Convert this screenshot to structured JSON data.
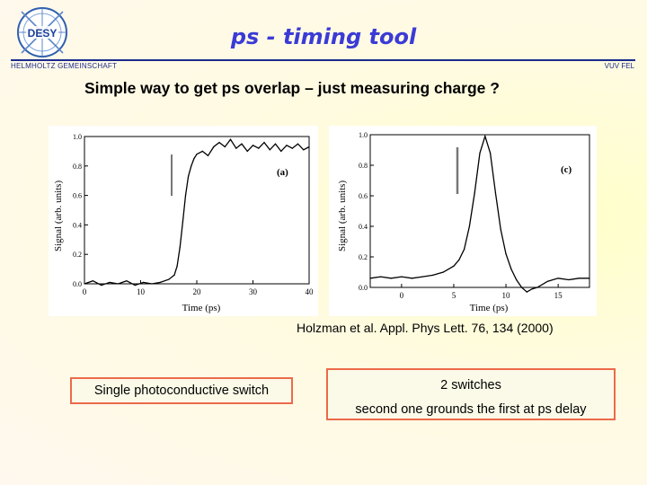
{
  "header": {
    "logo_text": "DESY",
    "title": "ps - timing tool",
    "organization": "HELMHOLTZ GEMEINSCHAFT",
    "group": "VUV FEL",
    "subtitle": "Simple way to get ps overlap – just measuring charge ?"
  },
  "reference": "Holzman et al. Appl. Phys Lett. 76, 134 (2000)",
  "boxes": {
    "single": "Single photoconductive switch",
    "double_title": "2 switches",
    "double_desc": "second one grounds the first at ps delay"
  },
  "chart_data": [
    {
      "type": "line",
      "panel_label": "(a)",
      "xlabel": "Time (ps)",
      "ylabel": "Signal (arb. units)",
      "xlim": [
        0,
        40
      ],
      "ylim": [
        0,
        1.0
      ],
      "x_ticks": [
        "0",
        "10",
        "20",
        "30",
        "40"
      ],
      "y_ticks": [
        "0.0",
        "0.2",
        "0.4",
        "0.6",
        "0.8",
        "1.0"
      ],
      "x": [
        0,
        1.5,
        3,
        4.5,
        6,
        7.5,
        9,
        10.5,
        12,
        13.5,
        15,
        16,
        16.5,
        17,
        17.5,
        18,
        18.5,
        19,
        19.5,
        20,
        21,
        22,
        23,
        24,
        25,
        26,
        27,
        28,
        29,
        30,
        31,
        32,
        33,
        34,
        35,
        36,
        37,
        38,
        39,
        40
      ],
      "y": [
        0.0,
        0.02,
        -0.01,
        0.01,
        0.0,
        0.02,
        -0.01,
        0.01,
        0.0,
        0.01,
        0.03,
        0.06,
        0.12,
        0.25,
        0.42,
        0.6,
        0.73,
        0.8,
        0.85,
        0.88,
        0.9,
        0.87,
        0.93,
        0.96,
        0.93,
        0.98,
        0.92,
        0.95,
        0.9,
        0.94,
        0.92,
        0.96,
        0.91,
        0.95,
        0.9,
        0.94,
        0.92,
        0.95,
        0.91,
        0.93
      ]
    },
    {
      "type": "line",
      "panel_label": "(c)",
      "xlabel": "Time (ps)",
      "ylabel": "Signal (arb. units)",
      "xlim": [
        -3,
        18
      ],
      "ylim": [
        0,
        1.0
      ],
      "x_ticks": [
        "0",
        "5",
        "10",
        "15"
      ],
      "y_ticks": [
        "0.0",
        "0.2",
        "0.4",
        "0.6",
        "0.8",
        "1.0"
      ],
      "x": [
        -3,
        -2,
        -1,
        0,
        1,
        2,
        3,
        4,
        5,
        5.5,
        6,
        6.5,
        7,
        7.5,
        8,
        8.5,
        9,
        9.5,
        10,
        10.5,
        11,
        11.5,
        12,
        12.5,
        13,
        14,
        15,
        16,
        17,
        18
      ],
      "y": [
        0.06,
        0.07,
        0.06,
        0.07,
        0.06,
        0.07,
        0.08,
        0.1,
        0.14,
        0.18,
        0.25,
        0.4,
        0.62,
        0.88,
        0.99,
        0.88,
        0.62,
        0.38,
        0.22,
        0.12,
        0.05,
        0.0,
        -0.03,
        -0.01,
        0.0,
        0.04,
        0.06,
        0.05,
        0.06,
        0.06
      ]
    }
  ]
}
